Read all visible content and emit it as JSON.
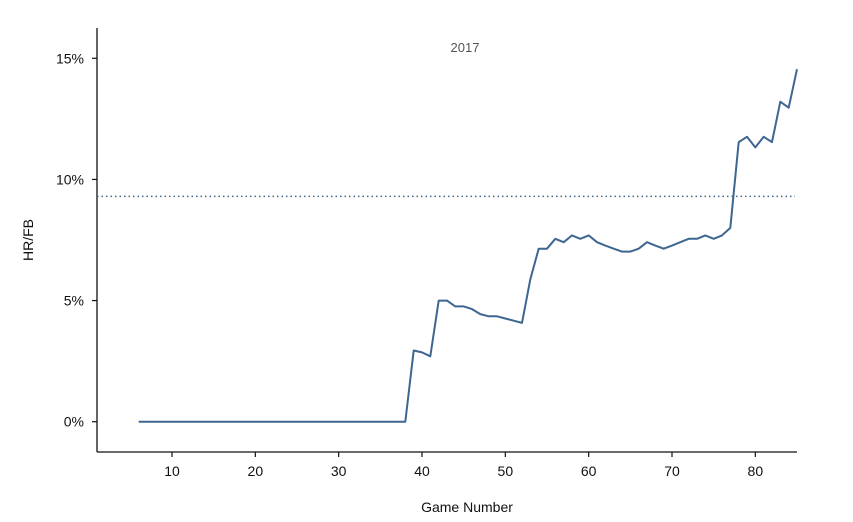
{
  "chart_data": {
    "type": "line",
    "xlabel": "Game Number",
    "ylabel": "HR/FB",
    "annotation": "2017",
    "xlim": [
      1,
      85
    ],
    "ylim": [
      -0.0125,
      0.1625
    ],
    "x_ticks": [
      10,
      20,
      30,
      40,
      50,
      60,
      70,
      80
    ],
    "x_tick_labels": [
      "10",
      "20",
      "30",
      "40",
      "50",
      "60",
      "70",
      "80"
    ],
    "y_ticks": [
      0,
      0.05,
      0.1,
      0.15
    ],
    "y_tick_labels": [
      "0%",
      "5%",
      "10%",
      "15%"
    ],
    "reference_line": {
      "y": 0.093,
      "style": "dotted"
    },
    "line_color": "#3d6690",
    "series": [
      {
        "x": [
          6,
          7,
          8,
          9,
          10,
          11,
          12,
          13,
          14,
          15,
          16,
          17,
          18,
          19,
          20,
          21,
          22,
          23,
          24,
          25,
          26,
          27,
          28,
          29,
          30,
          31,
          32,
          33,
          34,
          35,
          36,
          37,
          38,
          39,
          40,
          41,
          42,
          43,
          44,
          45,
          46,
          47,
          48,
          49,
          50,
          51,
          52,
          53,
          54,
          55,
          56,
          57,
          58,
          59,
          60,
          61,
          62,
          63,
          64,
          65,
          66,
          67,
          68,
          69,
          70,
          71,
          72,
          73,
          74,
          75,
          76,
          77,
          78,
          79,
          80,
          81,
          82,
          83,
          84,
          85
        ],
        "values": [
          0,
          0,
          0,
          0,
          0,
          0,
          0,
          0,
          0,
          0,
          0,
          0,
          0,
          0,
          0,
          0,
          0,
          0,
          0,
          0,
          0,
          0,
          0,
          0,
          0,
          0,
          0,
          0,
          0,
          0,
          0,
          0,
          0,
          0.0294,
          0.0286,
          0.027,
          0.05,
          0.05,
          0.0476,
          0.0476,
          0.0465,
          0.0444,
          0.0435,
          0.0435,
          0.0426,
          0.0417,
          0.0408,
          0.0588,
          0.0714,
          0.0714,
          0.0755,
          0.0741,
          0.0769,
          0.0755,
          0.0769,
          0.0741,
          0.0727,
          0.0714,
          0.0702,
          0.0702,
          0.0714,
          0.0741,
          0.0727,
          0.0714,
          0.0727,
          0.0741,
          0.0755,
          0.0755,
          0.0769,
          0.0755,
          0.0769,
          0.08,
          0.1154,
          0.1176,
          0.1132,
          0.1176,
          0.1154,
          0.1321,
          0.1296,
          0.1455
        ]
      }
    ]
  }
}
